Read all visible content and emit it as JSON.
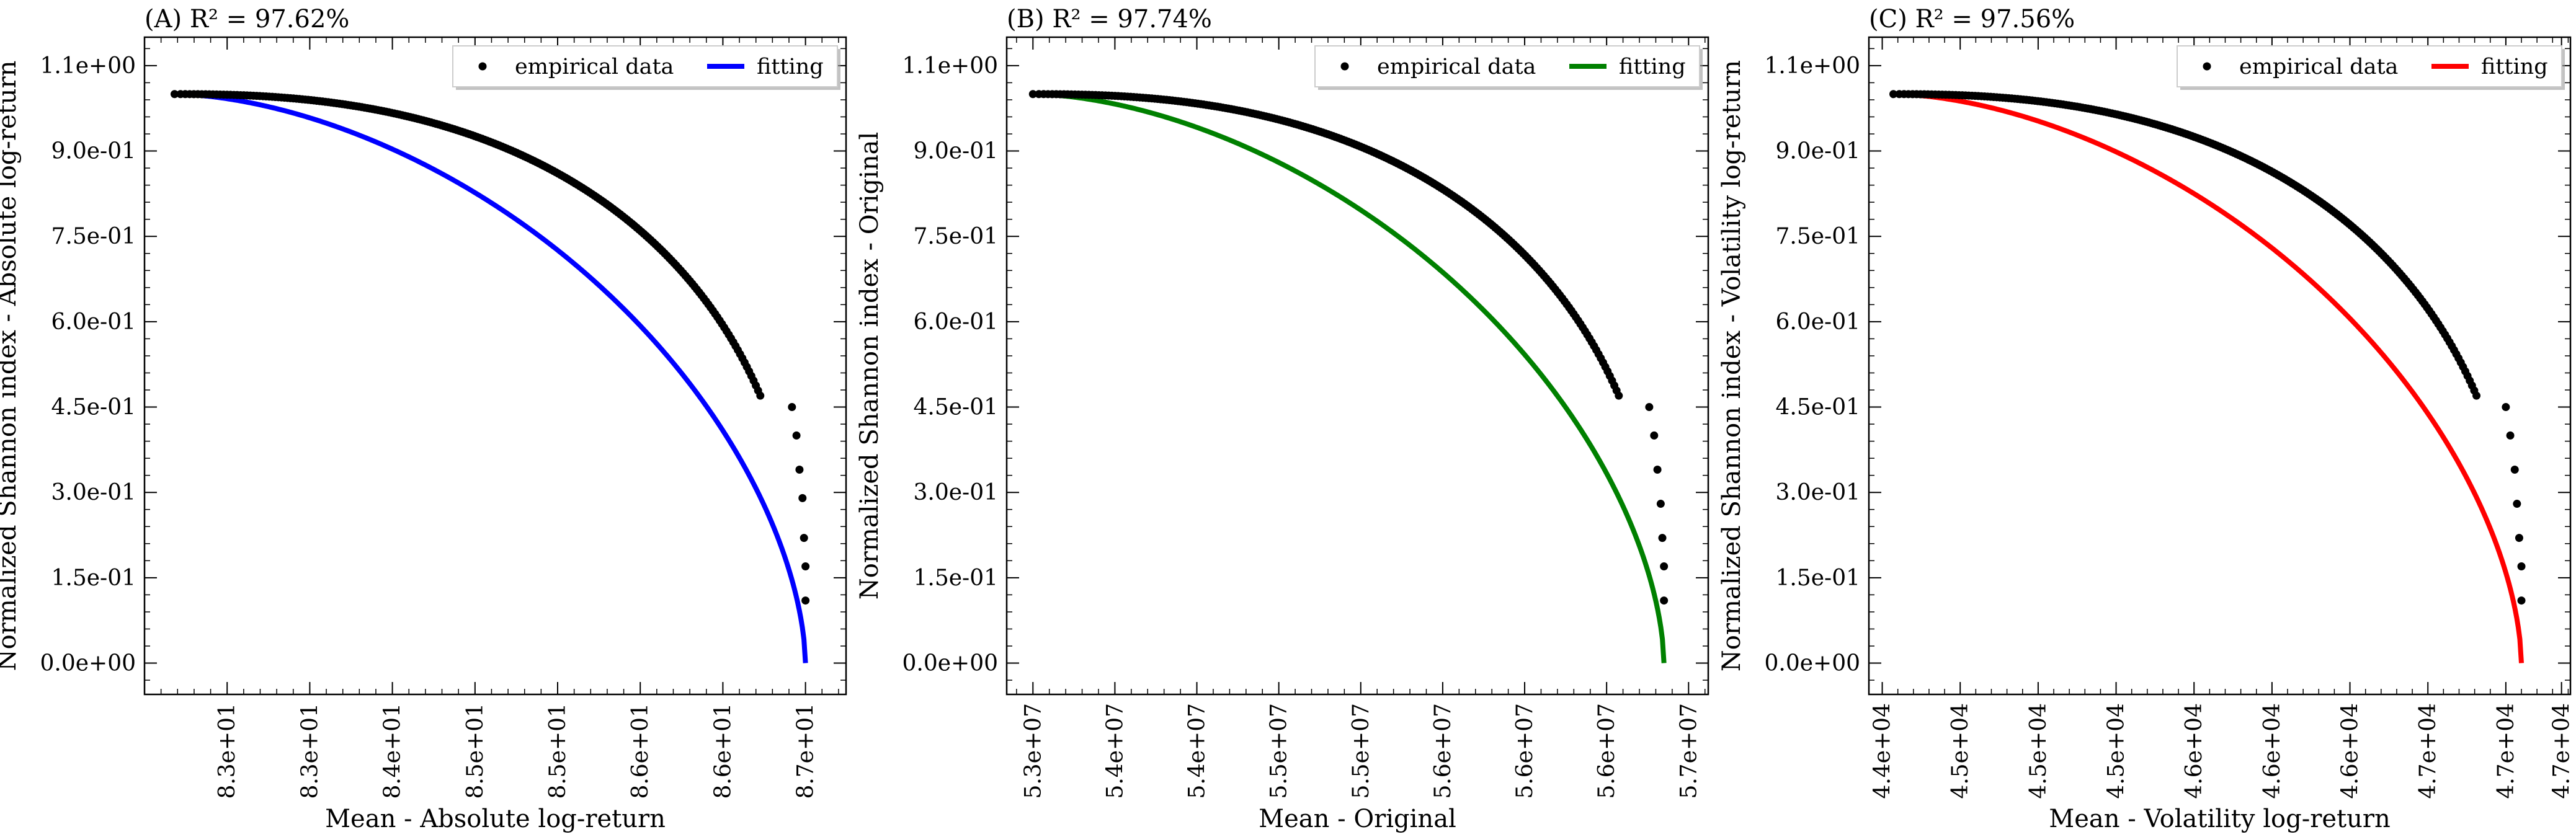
{
  "figure": {
    "panel_count": 3
  },
  "chart_data": [
    {
      "type": "scatter",
      "title": "(A) R² = 97.62%",
      "xlabel": "Mean - Absolute log-return",
      "ylabel": "Normalized Shannon index - Absolute log-return",
      "xlim": [
        82.4,
        87.07
      ],
      "ylim": [
        -0.055,
        1.1
      ],
      "x_ticks": [
        82.95,
        83.5,
        84.05,
        84.6,
        85.15,
        85.7,
        86.25,
        86.8
      ],
      "x_tick_labels": [
        "8.3e+01",
        "8.3e+01",
        "8.4e+01",
        "8.5e+01",
        "8.5e+01",
        "8.6e+01",
        "8.6e+01",
        "8.7e+01"
      ],
      "y_ticks": [
        0.0,
        0.15,
        0.3,
        0.45,
        0.6,
        0.75,
        0.9,
        1.05
      ],
      "y_tick_labels": [
        "0.0e+00",
        "1.5e-01",
        "3.0e-01",
        "4.5e-01",
        "6.0e-01",
        "7.5e-01",
        "9.0e-01",
        "1.1e+00"
      ],
      "legend": {
        "position": "upper-right",
        "entries": [
          "empirical data",
          "fitting"
        ]
      },
      "grid": false,
      "series": [
        {
          "name": "empirical data",
          "kind": "points",
          "color": "#000000",
          "x_start": 82.6,
          "x_end": 86.8,
          "y_start": 1.0,
          "exponent": 2.4,
          "tail_points": [
            [
              86.71,
              0.45
            ],
            [
              86.74,
              0.4
            ],
            [
              86.76,
              0.34
            ],
            [
              86.78,
              0.29
            ],
            [
              86.79,
              0.22
            ],
            [
              86.8,
              0.17
            ],
            [
              86.8,
              0.11
            ]
          ]
        },
        {
          "name": "fitting",
          "kind": "line",
          "color": "#0000ff",
          "x_start": 82.6,
          "x_end": 86.8,
          "y_start": 1.0,
          "y_end": 0.0,
          "exponent": 1.72
        }
      ]
    },
    {
      "type": "scatter",
      "title": "(B) R² = 97.74%",
      "xlabel": "Mean - Original",
      "ylabel": "Normalized Shannon index - Original",
      "xlim": [
        52.84,
        57.12
      ],
      "ylim": [
        -0.055,
        1.1
      ],
      "x_ticks": [
        53.0,
        53.5,
        54.0,
        54.5,
        55.0,
        55.5,
        56.0,
        56.5,
        57.0
      ],
      "x_tick_labels": [
        "5.3e+07",
        "5.4e+07",
        "5.4e+07",
        "5.5e+07",
        "5.5e+07",
        "5.6e+07",
        "5.6e+07",
        "5.6e+07",
        "5.7e+07"
      ],
      "y_ticks": [
        0.0,
        0.15,
        0.3,
        0.45,
        0.6,
        0.75,
        0.9,
        1.05
      ],
      "y_tick_labels": [
        "0.0e+00",
        "1.5e-01",
        "3.0e-01",
        "4.5e-01",
        "6.0e-01",
        "7.5e-01",
        "9.0e-01",
        "1.1e+00"
      ],
      "legend": {
        "position": "upper-right",
        "entries": [
          "empirical data",
          "fitting"
        ]
      },
      "grid": false,
      "series": [
        {
          "name": "empirical data",
          "kind": "points",
          "color": "#000000",
          "x_start": 53.0,
          "x_end": 56.85,
          "y_start": 1.0,
          "exponent": 2.4,
          "tail_points": [
            [
              56.76,
              0.45
            ],
            [
              56.79,
              0.4
            ],
            [
              56.81,
              0.34
            ],
            [
              56.83,
              0.28
            ],
            [
              56.84,
              0.22
            ],
            [
              56.85,
              0.17
            ],
            [
              56.85,
              0.11
            ]
          ]
        },
        {
          "name": "fitting",
          "kind": "line",
          "color": "#008000",
          "x_start": 53.0,
          "x_end": 56.85,
          "y_start": 1.0,
          "y_end": 0.0,
          "exponent": 1.72
        }
      ]
    },
    {
      "type": "scatter",
      "title": "(C) R² = 97.56%",
      "xlabel": "Mean - Volatility log-return",
      "ylabel": "Normalized Shannon index - Volatility log-return",
      "xlim": [
        44.39,
        47.54
      ],
      "ylim": [
        -0.055,
        1.1
      ],
      "x_ticks": [
        44.45,
        44.8,
        45.15,
        45.5,
        45.85,
        46.2,
        46.55,
        46.9,
        47.25,
        47.5
      ],
      "x_tick_labels": [
        "4.4e+04",
        "4.5e+04",
        "4.5e+04",
        "4.5e+04",
        "4.6e+04",
        "4.6e+04",
        "4.6e+04",
        "4.7e+04",
        "4.7e+04",
        "4.7e+04"
      ],
      "y_ticks": [
        0.0,
        0.15,
        0.3,
        0.45,
        0.6,
        0.75,
        0.9,
        1.05
      ],
      "y_tick_labels": [
        "0.0e+00",
        "1.5e-01",
        "3.0e-01",
        "4.5e-01",
        "6.0e-01",
        "7.5e-01",
        "9.0e-01",
        "1.1e+00"
      ],
      "legend": {
        "position": "upper-right",
        "entries": [
          "empirical data",
          "fitting"
        ]
      },
      "grid": false,
      "series": [
        {
          "name": "empirical data",
          "kind": "points",
          "color": "#000000",
          "x_start": 44.5,
          "x_end": 47.32,
          "y_start": 1.0,
          "exponent": 2.4,
          "tail_points": [
            [
              47.25,
              0.45
            ],
            [
              47.27,
              0.4
            ],
            [
              47.29,
              0.34
            ],
            [
              47.3,
              0.28
            ],
            [
              47.31,
              0.22
            ],
            [
              47.32,
              0.17
            ],
            [
              47.32,
              0.11
            ]
          ]
        },
        {
          "name": "fitting",
          "kind": "line",
          "color": "#ff0000",
          "x_start": 44.5,
          "x_end": 47.32,
          "y_start": 1.0,
          "y_end": 0.0,
          "exponent": 1.72
        }
      ]
    }
  ]
}
